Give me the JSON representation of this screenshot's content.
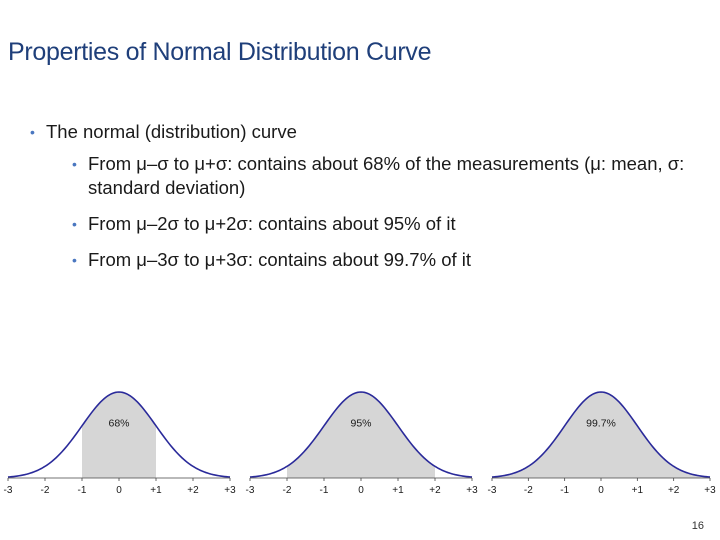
{
  "slide": {
    "title": "Properties of Normal Distribution Curve",
    "bullets": {
      "main": "The normal (distribution) curve",
      "sub": [
        "From μ–σ to μ+σ: contains about 68% of the measurements (μ: mean, σ: standard deviation)",
        "From μ–2σ to μ+2σ: contains about 95% of it",
        "From μ–3σ to μ+3σ: contains about 99.7% of it"
      ]
    },
    "page_number": "16"
  },
  "chart_data": [
    {
      "type": "area",
      "x_ticks": [
        "-3",
        "-2",
        "-1",
        "0",
        "+1",
        "+2",
        "+3"
      ],
      "xlim": [
        -3,
        3
      ],
      "shaded_range": [
        -1,
        1
      ],
      "annotation": "68%",
      "curve_color": "#2a2a9a",
      "fill_color": "#d6d6d6"
    },
    {
      "type": "area",
      "x_ticks": [
        "-3",
        "-2",
        "-1",
        "0",
        "+1",
        "+2",
        "+3"
      ],
      "xlim": [
        -3,
        3
      ],
      "shaded_range": [
        -2,
        2
      ],
      "annotation": "95%",
      "curve_color": "#2a2a9a",
      "fill_color": "#d6d6d6"
    },
    {
      "type": "area",
      "x_ticks": [
        "-3",
        "-2",
        "-1",
        "0",
        "+1",
        "+2",
        "+3"
      ],
      "xlim": [
        -3,
        3
      ],
      "shaded_range": [
        -3,
        3
      ],
      "annotation": "99.7%",
      "curve_color": "#2a2a9a",
      "fill_color": "#d6d6d6"
    }
  ]
}
